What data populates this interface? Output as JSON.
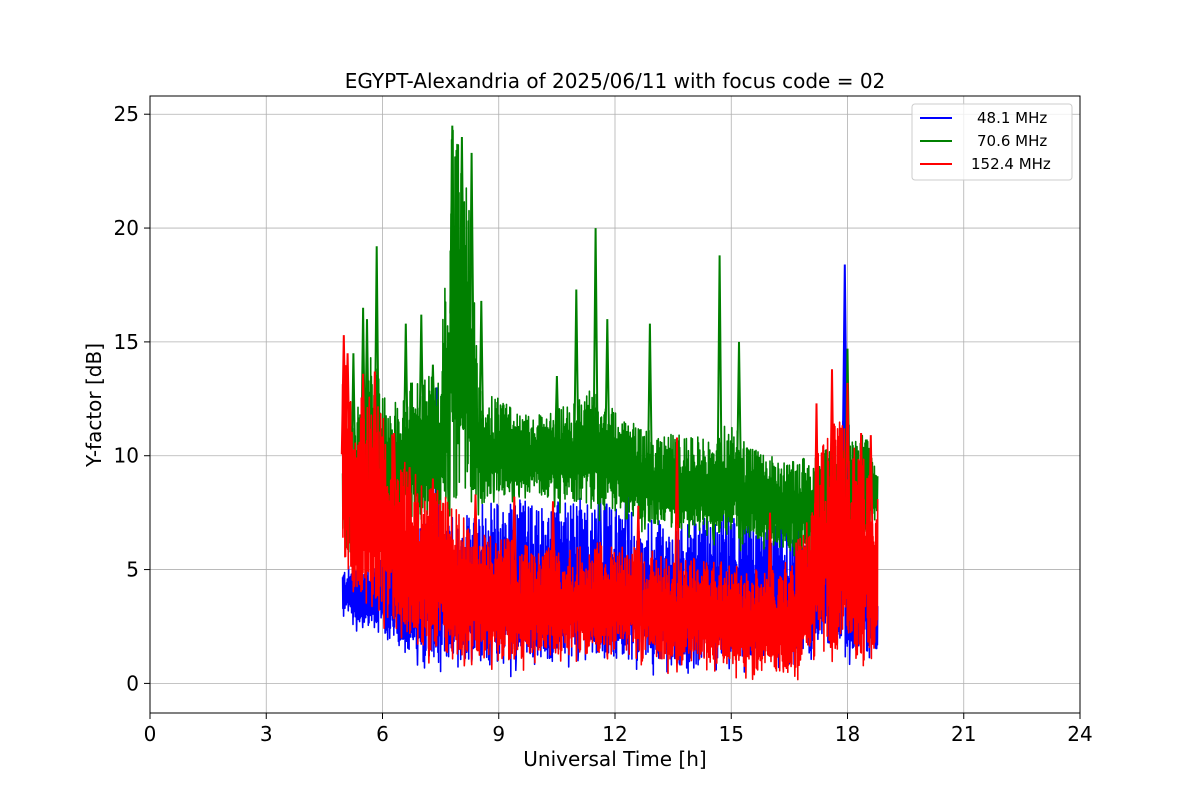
{
  "chart_data": {
    "type": "line",
    "title": "EGYPT-Alexandria of 2025/06/11 with focus code = 02",
    "xlabel": "Universal Time [h]",
    "ylabel": "Y-factor [dB]",
    "xlim": [
      0,
      24
    ],
    "ylim": [
      -1.3,
      25.8
    ],
    "xticks": [
      0,
      3,
      6,
      9,
      12,
      15,
      18,
      21,
      24
    ],
    "yticks": [
      0,
      5,
      10,
      15,
      20,
      25
    ],
    "xtick_labels": [
      "0",
      "3",
      "6",
      "9",
      "12",
      "15",
      "18",
      "21",
      "24"
    ],
    "ytick_labels": [
      "0",
      "5",
      "10",
      "15",
      "20",
      "25"
    ],
    "grid": true,
    "legend_position": "top-right",
    "series": [
      {
        "name": "48.1 MHz",
        "color": "#0000ff",
        "x": [
          4.97,
          5.1,
          5.3,
          5.5,
          5.75,
          6.0,
          6.5,
          7.0,
          7.5,
          8.0,
          8.5,
          9.0,
          9.5,
          10.0,
          10.5,
          11.0,
          11.5,
          12.0,
          12.5,
          13.0,
          13.5,
          14.0,
          14.5,
          15.0,
          15.5,
          16.0,
          16.5,
          17.0,
          17.5,
          17.8,
          17.93,
          18.1,
          18.5,
          18.78
        ],
        "low": [
          2.8,
          2.9,
          2.7,
          2.6,
          2.5,
          2.0,
          1.5,
          1.2,
          1.1,
          1.0,
          0.9,
          0.8,
          0.9,
          1.0,
          1.1,
          1.2,
          1.1,
          1.1,
          1.0,
          0.8,
          0.5,
          0.8,
          1.0,
          1.1,
          1.0,
          1.0,
          1.0,
          1.4,
          1.5,
          1.8,
          1.6,
          1.2,
          1.1,
          1.2
        ],
        "high": [
          5.0,
          5.2,
          5.0,
          4.8,
          5.5,
          5.8,
          6.5,
          7.0,
          7.2,
          7.5,
          8.0,
          8.0,
          8.3,
          7.8,
          8.0,
          8.2,
          8.0,
          7.8,
          7.5,
          7.2,
          7.0,
          7.2,
          7.5,
          7.8,
          7.5,
          7.2,
          7.0,
          6.8,
          7.0,
          7.5,
          18.4,
          8.0,
          7.0,
          4.8
        ],
        "peaks": [
          [
            7.4,
            13.0
          ],
          [
            11.6,
            10.5
          ],
          [
            12.3,
            11.0
          ],
          [
            17.93,
            18.4
          ]
        ]
      },
      {
        "name": "70.6 MHz",
        "color": "#008000",
        "x": [
          4.97,
          5.1,
          5.3,
          5.5,
          5.75,
          6.0,
          6.5,
          7.0,
          7.5,
          7.8,
          8.0,
          8.2,
          8.5,
          9.0,
          9.5,
          10.0,
          10.5,
          11.0,
          11.5,
          12.0,
          12.5,
          13.0,
          13.5,
          14.0,
          14.5,
          15.0,
          15.5,
          16.0,
          16.5,
          17.0,
          17.5,
          18.0,
          18.5,
          18.78
        ],
        "low": [
          6.0,
          5.8,
          5.5,
          5.5,
          5.8,
          6.2,
          6.5,
          7.0,
          7.5,
          8.0,
          8.2,
          8.0,
          7.8,
          8.2,
          8.5,
          8.3,
          8.0,
          8.0,
          7.8,
          7.5,
          7.3,
          7.0,
          6.8,
          6.8,
          6.6,
          6.5,
          6.2,
          6.0,
          5.8,
          5.6,
          5.5,
          5.5,
          6.0,
          7.5
        ],
        "high": [
          10.0,
          11.0,
          12.0,
          13.0,
          15.0,
          12.5,
          13.0,
          13.5,
          14.0,
          24.5,
          23.5,
          22.0,
          13.0,
          12.5,
          12.0,
          11.8,
          12.0,
          12.5,
          13.0,
          12.0,
          11.5,
          11.0,
          11.0,
          10.8,
          11.0,
          11.5,
          10.5,
          10.0,
          9.8,
          10.0,
          10.5,
          10.8,
          11.0,
          9.5
        ],
        "peaks": [
          [
            5.05,
            13.5
          ],
          [
            5.25,
            14.5
          ],
          [
            5.5,
            16.5
          ],
          [
            5.6,
            16.0
          ],
          [
            5.85,
            19.2
          ],
          [
            6.6,
            15.8
          ],
          [
            7.0,
            16.2
          ],
          [
            7.3,
            14.0
          ],
          [
            7.8,
            24.5
          ],
          [
            8.05,
            24.0
          ],
          [
            8.3,
            23.3
          ],
          [
            8.55,
            16.8
          ],
          [
            10.5,
            13.5
          ],
          [
            11.0,
            17.3
          ],
          [
            11.5,
            20.0
          ],
          [
            11.8,
            16.0
          ],
          [
            12.9,
            15.8
          ],
          [
            14.7,
            18.8
          ],
          [
            15.2,
            15.0
          ],
          [
            16.4,
            7.5
          ],
          [
            17.6,
            11.5
          ],
          [
            18.0,
            14.7
          ]
        ]
      },
      {
        "name": "152.4 MHz",
        "color": "#ff0000",
        "x": [
          4.97,
          5.05,
          5.2,
          5.5,
          5.75,
          6.0,
          6.25,
          6.5,
          7.0,
          7.5,
          8.0,
          8.5,
          9.0,
          9.5,
          10.0,
          10.5,
          11.0,
          11.5,
          12.0,
          12.5,
          13.0,
          13.5,
          14.0,
          14.5,
          15.0,
          15.5,
          16.0,
          16.5,
          17.0,
          17.25,
          17.5,
          17.75,
          18.0,
          18.25,
          18.5,
          18.78
        ],
        "low": [
          6.0,
          5.0,
          4.5,
          3.8,
          3.5,
          3.0,
          2.5,
          2.0,
          1.5,
          1.2,
          1.1,
          1.0,
          1.0,
          1.0,
          1.1,
          1.2,
          1.3,
          1.2,
          1.3,
          1.2,
          1.1,
          1.0,
          1.0,
          0.9,
          0.8,
          0.6,
          0.5,
          0.6,
          0.8,
          1.2,
          1.5,
          1.5,
          1.2,
          1.0,
          1.0,
          1.2
        ],
        "high": [
          14.0,
          15.3,
          13.0,
          12.5,
          13.0,
          12.0,
          11.0,
          10.0,
          9.0,
          8.5,
          7.5,
          7.0,
          6.5,
          6.2,
          6.0,
          6.0,
          6.0,
          6.2,
          6.3,
          6.0,
          5.8,
          5.5,
          5.5,
          5.5,
          5.3,
          5.0,
          5.0,
          5.5,
          7.5,
          10.5,
          11.5,
          12.0,
          11.5,
          10.5,
          10.0,
          9.0
        ],
        "peaks": [
          [
            5.0,
            15.3
          ],
          [
            5.1,
            14.5
          ],
          [
            5.5,
            13.6
          ],
          [
            5.8,
            13.7
          ],
          [
            6.3,
            11.0
          ],
          [
            6.7,
            9.5
          ],
          [
            7.3,
            9.0
          ],
          [
            8.4,
            8.3
          ],
          [
            9.4,
            8.2
          ],
          [
            10.4,
            8.0
          ],
          [
            12.6,
            7.8
          ],
          [
            13.6,
            10.8
          ],
          [
            16.0,
            7.5
          ],
          [
            17.2,
            12.3
          ],
          [
            17.6,
            13.8
          ],
          [
            18.0,
            13.2
          ],
          [
            18.35,
            11.0
          ],
          [
            18.6,
            10.9
          ]
        ]
      }
    ]
  }
}
